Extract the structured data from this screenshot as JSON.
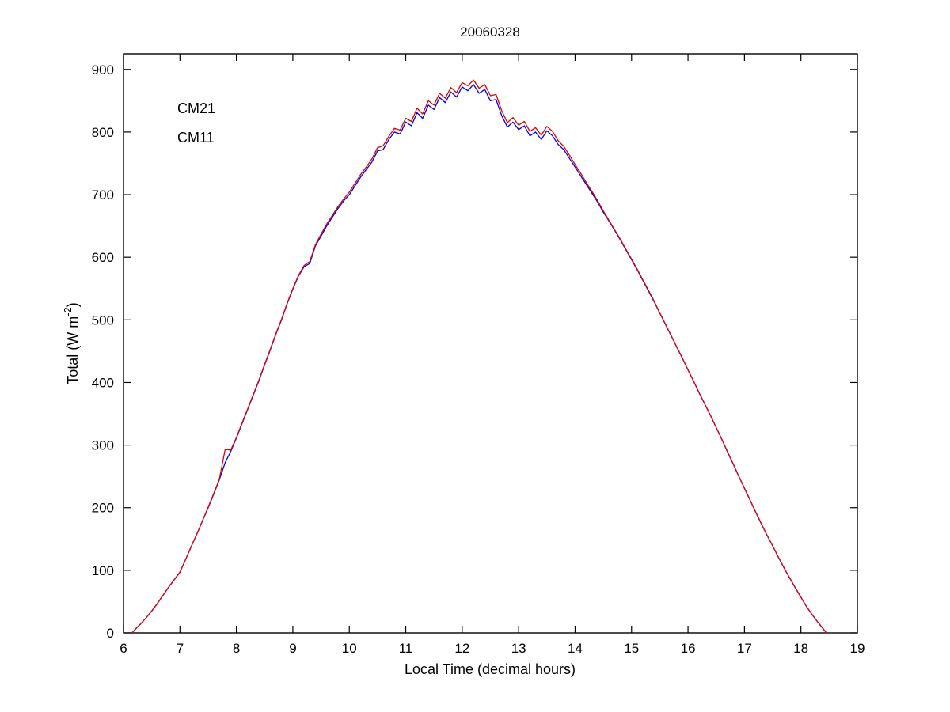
{
  "chart_data": {
    "type": "line",
    "title": "20060328",
    "xlabel": "Local Time (decimal hours)",
    "ylabel": {
      "pre": "Total (W m",
      "sup": "-2",
      "post": ")"
    },
    "xlim": [
      6,
      19
    ],
    "ylim": [
      0,
      925
    ],
    "xticks": [
      6,
      7,
      8,
      9,
      10,
      11,
      12,
      13,
      14,
      15,
      16,
      17,
      18,
      19
    ],
    "yticks": [
      0,
      100,
      200,
      300,
      400,
      500,
      600,
      700,
      800,
      900
    ],
    "grid": false,
    "legend_position": "upper-left-inside",
    "x": [
      6.15,
      6.2,
      6.3,
      6.4,
      6.5,
      6.6,
      6.7,
      6.8,
      6.9,
      7.0,
      7.1,
      7.2,
      7.3,
      7.4,
      7.5,
      7.6,
      7.7,
      7.8,
      7.9,
      8.0,
      8.1,
      8.2,
      8.3,
      8.4,
      8.5,
      8.6,
      8.7,
      8.8,
      8.9,
      9.0,
      9.1,
      9.2,
      9.3,
      9.4,
      9.5,
      9.6,
      9.7,
      9.8,
      9.9,
      10.0,
      10.1,
      10.2,
      10.3,
      10.4,
      10.5,
      10.6,
      10.7,
      10.8,
      10.9,
      11.0,
      11.1,
      11.2,
      11.3,
      11.4,
      11.5,
      11.6,
      11.7,
      11.8,
      11.9,
      12.0,
      12.1,
      12.2,
      12.3,
      12.4,
      12.5,
      12.6,
      12.7,
      12.8,
      12.9,
      13.0,
      13.1,
      13.2,
      13.3,
      13.4,
      13.5,
      13.6,
      13.7,
      13.8,
      13.9,
      14.0,
      14.1,
      14.2,
      14.3,
      14.4,
      14.5,
      14.6,
      14.7,
      14.8,
      14.9,
      15.0,
      15.1,
      15.2,
      15.3,
      15.4,
      15.5,
      15.6,
      15.7,
      15.8,
      15.9,
      16.0,
      16.1,
      16.2,
      16.3,
      16.4,
      16.5,
      16.6,
      16.7,
      16.8,
      16.9,
      17.0,
      17.1,
      17.2,
      17.3,
      17.4,
      17.5,
      17.6,
      17.7,
      17.8,
      17.9,
      18.0,
      18.1,
      18.2,
      18.3,
      18.4,
      18.45
    ],
    "series": [
      {
        "name": "CM21",
        "color": "#0000dd",
        "values": [
          0,
          5,
          14,
          24,
          35,
          47,
          60,
          73,
          85,
          97,
          117,
          138,
          158,
          179,
          200,
          222,
          245,
          272,
          290,
          311,
          334,
          357,
          380,
          403,
          428,
          452,
          477,
          500,
          526,
          549,
          570,
          585,
          590,
          618,
          634,
          650,
          664,
          678,
          690,
          700,
          714,
          728,
          740,
          752,
          770,
          772,
          788,
          800,
          797,
          816,
          810,
          831,
          822,
          843,
          836,
          855,
          847,
          864,
          856,
          872,
          866,
          876,
          862,
          868,
          850,
          852,
          826,
          808,
          816,
          804,
          810,
          794,
          800,
          788,
          802,
          794,
          780,
          772,
          758,
          744,
          730,
          716,
          702,
          688,
          672,
          658,
          643,
          628,
          612,
          596,
          580,
          563,
          546,
          529,
          511,
          493,
          475,
          457,
          439,
          420,
          402,
          383,
          365,
          347,
          328,
          309,
          289,
          270,
          250,
          231,
          212,
          193,
          174,
          156,
          139,
          121,
          104,
          88,
          72,
          57,
          42,
          29,
          17,
          6,
          0
        ]
      },
      {
        "name": "CM11",
        "color": "#dd0000",
        "values": [
          0,
          5,
          14,
          24,
          35,
          47,
          60,
          73,
          85,
          97,
          117,
          138,
          158,
          179,
          201,
          223,
          246,
          293,
          292,
          312,
          335,
          358,
          381,
          404,
          429,
          453,
          478,
          501,
          527,
          550,
          571,
          587,
          593,
          620,
          637,
          653,
          667,
          681,
          693,
          704,
          718,
          732,
          744,
          757,
          775,
          778,
          793,
          806,
          803,
          822,
          817,
          838,
          829,
          850,
          843,
          862,
          854,
          871,
          863,
          879,
          874,
          883,
          870,
          876,
          858,
          860,
          834,
          815,
          823,
          811,
          817,
          801,
          807,
          795,
          809,
          801,
          786,
          777,
          763,
          748,
          734,
          719,
          705,
          690,
          674,
          659,
          644,
          629,
          613,
          597,
          581,
          564,
          547,
          530,
          511,
          493,
          475,
          457,
          439,
          420,
          402,
          383,
          365,
          347,
          328,
          309,
          289,
          270,
          250,
          231,
          212,
          193,
          174,
          156,
          139,
          121,
          104,
          88,
          72,
          57,
          42,
          29,
          17,
          6,
          0
        ]
      }
    ]
  }
}
